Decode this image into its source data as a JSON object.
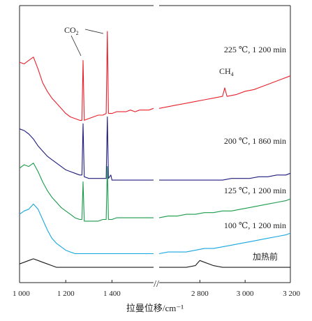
{
  "chart_data": {
    "type": "line",
    "title": "",
    "xlabel": "拉曼位移/cm⁻¹",
    "ylabel": "",
    "x_axis": {
      "broken": true,
      "left_segment": [
        1000,
        1580
      ],
      "right_segment": [
        2620,
        3200
      ],
      "tick_values": [
        1000,
        1200,
        1400,
        2800,
        3000,
        3200
      ],
      "tick_labels": [
        "1 000",
        "1 200",
        "1 400",
        "2 800",
        "3 000",
        "3 200"
      ]
    },
    "grid": false,
    "series": [
      {
        "name": "225 ℃, 1 200 min",
        "color": "#e8202a",
        "points": [
          [
            1000,
            12.2
          ],
          [
            1020,
            12.1
          ],
          [
            1040,
            12.3
          ],
          [
            1060,
            12.5
          ],
          [
            1080,
            11.8
          ],
          [
            1100,
            11.0
          ],
          [
            1120,
            10.5
          ],
          [
            1140,
            10.1
          ],
          [
            1160,
            9.8
          ],
          [
            1180,
            9.5
          ],
          [
            1200,
            9.2
          ],
          [
            1220,
            9.0
          ],
          [
            1240,
            8.9
          ],
          [
            1260,
            8.8
          ],
          [
            1270,
            8.8
          ],
          [
            1275,
            12.3
          ],
          [
            1280,
            8.8
          ],
          [
            1300,
            8.9
          ],
          [
            1320,
            9.0
          ],
          [
            1340,
            9.1
          ],
          [
            1360,
            9.1
          ],
          [
            1375,
            9.2
          ],
          [
            1380,
            14.0
          ],
          [
            1385,
            9.2
          ],
          [
            1400,
            9.2
          ],
          [
            1420,
            9.3
          ],
          [
            1440,
            9.3
          ],
          [
            1460,
            9.3
          ],
          [
            1480,
            9.4
          ],
          [
            1500,
            9.3
          ],
          [
            1520,
            9.4
          ],
          [
            1540,
            9.4
          ],
          [
            1560,
            9.4
          ],
          [
            1580,
            9.5
          ],
          [
            2620,
            9.5
          ],
          [
            2660,
            9.6
          ],
          [
            2700,
            9.7
          ],
          [
            2740,
            9.8
          ],
          [
            2780,
            9.9
          ],
          [
            2820,
            10.0
          ],
          [
            2860,
            10.1
          ],
          [
            2900,
            10.2
          ],
          [
            2910,
            10.7
          ],
          [
            2920,
            10.2
          ],
          [
            2960,
            10.3
          ],
          [
            3000,
            10.5
          ],
          [
            3040,
            10.6
          ],
          [
            3080,
            10.8
          ],
          [
            3120,
            11.0
          ],
          [
            3160,
            11.2
          ],
          [
            3200,
            11.4
          ]
        ],
        "annotations": [
          {
            "text": "CO₂",
            "x": 1280
          },
          {
            "text": "CH₄",
            "x": 2910
          }
        ]
      },
      {
        "name": "200 ℃, 1 860 min",
        "color": "#1f1c7d",
        "points": [
          [
            1000,
            8.3
          ],
          [
            1020,
            8.2
          ],
          [
            1040,
            8.0
          ],
          [
            1060,
            7.7
          ],
          [
            1080,
            7.3
          ],
          [
            1100,
            7.0
          ],
          [
            1120,
            6.7
          ],
          [
            1140,
            6.5
          ],
          [
            1160,
            6.3
          ],
          [
            1180,
            6.1
          ],
          [
            1200,
            5.9
          ],
          [
            1220,
            5.8
          ],
          [
            1240,
            5.7
          ],
          [
            1260,
            5.6
          ],
          [
            1270,
            5.6
          ],
          [
            1275,
            8.6
          ],
          [
            1280,
            5.5
          ],
          [
            1300,
            5.4
          ],
          [
            1320,
            5.4
          ],
          [
            1340,
            5.4
          ],
          [
            1360,
            5.4
          ],
          [
            1375,
            5.4
          ],
          [
            1380,
            9.0
          ],
          [
            1385,
            5.4
          ],
          [
            1395,
            5.6
          ],
          [
            1400,
            5.3
          ],
          [
            1420,
            5.3
          ],
          [
            1440,
            5.3
          ],
          [
            1460,
            5.3
          ],
          [
            1480,
            5.3
          ],
          [
            1500,
            5.3
          ],
          [
            1520,
            5.3
          ],
          [
            1540,
            5.3
          ],
          [
            1560,
            5.3
          ],
          [
            1580,
            5.3
          ],
          [
            2620,
            5.3
          ],
          [
            2660,
            5.3
          ],
          [
            2700,
            5.3
          ],
          [
            2740,
            5.3
          ],
          [
            2780,
            5.3
          ],
          [
            2820,
            5.3
          ],
          [
            2860,
            5.3
          ],
          [
            2900,
            5.3
          ],
          [
            2940,
            5.4
          ],
          [
            2980,
            5.4
          ],
          [
            3020,
            5.4
          ],
          [
            3060,
            5.5
          ],
          [
            3100,
            5.5
          ],
          [
            3140,
            5.6
          ],
          [
            3180,
            5.6
          ],
          [
            3200,
            5.7
          ]
        ]
      },
      {
        "name": "125 ℃, 1 200 min",
        "color": "#1a9a4a",
        "points": [
          [
            1000,
            6.0
          ],
          [
            1020,
            6.2
          ],
          [
            1040,
            6.1
          ],
          [
            1060,
            6.3
          ],
          [
            1080,
            5.8
          ],
          [
            1100,
            5.2
          ],
          [
            1120,
            4.7
          ],
          [
            1140,
            4.3
          ],
          [
            1160,
            4.0
          ],
          [
            1180,
            3.7
          ],
          [
            1200,
            3.5
          ],
          [
            1220,
            3.3
          ],
          [
            1240,
            3.1
          ],
          [
            1260,
            3.0
          ],
          [
            1270,
            3.0
          ],
          [
            1275,
            5.2
          ],
          [
            1280,
            2.9
          ],
          [
            1300,
            2.9
          ],
          [
            1320,
            2.9
          ],
          [
            1340,
            2.9
          ],
          [
            1360,
            3.0
          ],
          [
            1375,
            3.0
          ],
          [
            1380,
            6.1
          ],
          [
            1385,
            3.0
          ],
          [
            1400,
            3.0
          ],
          [
            1420,
            3.1
          ],
          [
            1440,
            3.1
          ],
          [
            1460,
            3.1
          ],
          [
            1480,
            3.1
          ],
          [
            1500,
            3.1
          ],
          [
            1520,
            3.1
          ],
          [
            1540,
            3.1
          ],
          [
            1560,
            3.1
          ],
          [
            1580,
            3.1
          ],
          [
            2620,
            3.1
          ],
          [
            2660,
            3.2
          ],
          [
            2700,
            3.2
          ],
          [
            2740,
            3.3
          ],
          [
            2780,
            3.3
          ],
          [
            2820,
            3.4
          ],
          [
            2860,
            3.4
          ],
          [
            2900,
            3.5
          ],
          [
            2940,
            3.5
          ],
          [
            2980,
            3.6
          ],
          [
            3020,
            3.7
          ],
          [
            3060,
            3.8
          ],
          [
            3100,
            3.9
          ],
          [
            3140,
            4.0
          ],
          [
            3180,
            4.1
          ],
          [
            3200,
            4.2
          ]
        ]
      },
      {
        "name": "100 ℃, 1 200 min",
        "color": "#16a6df",
        "points": [
          [
            1000,
            3.3
          ],
          [
            1020,
            3.5
          ],
          [
            1040,
            3.6
          ],
          [
            1060,
            3.9
          ],
          [
            1080,
            3.6
          ],
          [
            1100,
            3.0
          ],
          [
            1120,
            2.4
          ],
          [
            1140,
            1.9
          ],
          [
            1160,
            1.6
          ],
          [
            1180,
            1.4
          ],
          [
            1200,
            1.2
          ],
          [
            1220,
            1.1
          ],
          [
            1240,
            1.0
          ],
          [
            1260,
            1.0
          ],
          [
            1280,
            1.0
          ],
          [
            1300,
            1.0
          ],
          [
            1320,
            1.0
          ],
          [
            1340,
            1.0
          ],
          [
            1360,
            1.0
          ],
          [
            1380,
            1.0
          ],
          [
            1400,
            1.0
          ],
          [
            1420,
            1.0
          ],
          [
            1440,
            1.0
          ],
          [
            1460,
            1.0
          ],
          [
            1480,
            1.0
          ],
          [
            1500,
            1.0
          ],
          [
            1520,
            1.0
          ],
          [
            1540,
            1.0
          ],
          [
            1560,
            1.0
          ],
          [
            1580,
            1.0
          ],
          [
            2620,
            1.0
          ],
          [
            2660,
            1.1
          ],
          [
            2700,
            1.1
          ],
          [
            2740,
            1.1
          ],
          [
            2780,
            1.2
          ],
          [
            2820,
            1.3
          ],
          [
            2860,
            1.3
          ],
          [
            2900,
            1.4
          ],
          [
            2940,
            1.5
          ],
          [
            2980,
            1.6
          ],
          [
            3020,
            1.7
          ],
          [
            3060,
            1.8
          ],
          [
            3100,
            1.9
          ],
          [
            3140,
            2.0
          ],
          [
            3180,
            2.1
          ],
          [
            3200,
            2.2
          ]
        ]
      },
      {
        "name": "加热前",
        "color": "#1a1a1a",
        "points": [
          [
            1000,
            0.4
          ],
          [
            1020,
            0.5
          ],
          [
            1040,
            0.6
          ],
          [
            1060,
            0.7
          ],
          [
            1080,
            0.6
          ],
          [
            1100,
            0.5
          ],
          [
            1120,
            0.4
          ],
          [
            1140,
            0.3
          ],
          [
            1160,
            0.2
          ],
          [
            1180,
            0.2
          ],
          [
            1200,
            0.2
          ],
          [
            1240,
            0.2
          ],
          [
            1280,
            0.2
          ],
          [
            1320,
            0.2
          ],
          [
            1360,
            0.2
          ],
          [
            1400,
            0.2
          ],
          [
            1440,
            0.2
          ],
          [
            1480,
            0.2
          ],
          [
            1520,
            0.2
          ],
          [
            1560,
            0.2
          ],
          [
            1580,
            0.2
          ],
          [
            2620,
            0.2
          ],
          [
            2660,
            0.2
          ],
          [
            2700,
            0.2
          ],
          [
            2740,
            0.2
          ],
          [
            2780,
            0.3
          ],
          [
            2800,
            0.6
          ],
          [
            2820,
            0.5
          ],
          [
            2860,
            0.3
          ],
          [
            2900,
            0.2
          ],
          [
            2940,
            0.2
          ],
          [
            2980,
            0.2
          ],
          [
            3020,
            0.2
          ],
          [
            3060,
            0.2
          ],
          [
            3100,
            0.2
          ],
          [
            3140,
            0.2
          ],
          [
            3180,
            0.2
          ],
          [
            3200,
            0.2
          ]
        ]
      }
    ],
    "labels": {
      "s225": "225 ℃, 1 200 min",
      "s200": "200 ℃, 1 860 min",
      "s125": "125 ℃, 1 200 min",
      "s100": "100 ℃, 1 200 min",
      "s0": "加热前",
      "co2": "CO",
      "co2_sub": "2",
      "ch4": "CH",
      "ch4_sub": "4",
      "break_mark": "//"
    }
  }
}
